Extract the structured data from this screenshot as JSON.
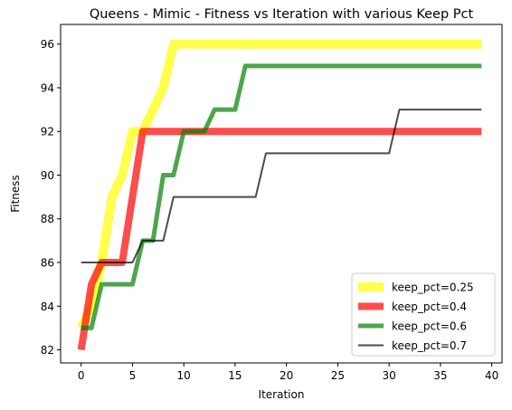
{
  "chart_data": {
    "type": "line",
    "title": "Queens - Mimic - Fitness vs Iteration with various Keep Pct",
    "xlabel": "Iteration",
    "ylabel": "Fitness",
    "xlim": [
      -2,
      41
    ],
    "ylim": [
      81.4,
      96.9
    ],
    "xticks": [
      0,
      5,
      10,
      15,
      20,
      25,
      30,
      35,
      40
    ],
    "yticks": [
      82,
      84,
      86,
      88,
      90,
      92,
      94,
      96
    ],
    "legend_position": "lower-right",
    "series": [
      {
        "name": "keep_pct=0.25",
        "color": "#ffff00",
        "x": [
          0,
          1,
          2,
          3,
          4,
          5,
          6,
          7,
          8,
          9,
          10,
          39
        ],
        "y": [
          83,
          84,
          86,
          89,
          90,
          92,
          92,
          93,
          94,
          96,
          96,
          96
        ]
      },
      {
        "name": "keep_pct=0.4",
        "color": "#ff0000",
        "x": [
          0,
          1,
          2,
          3,
          4,
          5,
          6,
          39
        ],
        "y": [
          82,
          85,
          86,
          86,
          86,
          89,
          92,
          92
        ]
      },
      {
        "name": "keep_pct=0.6",
        "color": "#008000",
        "x": [
          0,
          1,
          2,
          3,
          4,
          5,
          6,
          7,
          8,
          9,
          10,
          11,
          12,
          13,
          14,
          15,
          16,
          39
        ],
        "y": [
          83,
          83,
          85,
          85,
          85,
          85,
          87,
          87,
          90,
          90,
          92,
          92,
          92,
          93,
          93,
          93,
          95,
          95
        ]
      },
      {
        "name": "keep_pct=0.7",
        "color": "#000000",
        "x": [
          0,
          1,
          2,
          3,
          4,
          5,
          6,
          7,
          8,
          9,
          10,
          16,
          17,
          18,
          19,
          30,
          31,
          39
        ],
        "y": [
          86,
          86,
          86,
          86,
          86,
          86,
          87,
          87,
          87,
          89,
          89,
          89,
          89,
          91,
          91,
          91,
          93,
          93
        ]
      }
    ]
  }
}
